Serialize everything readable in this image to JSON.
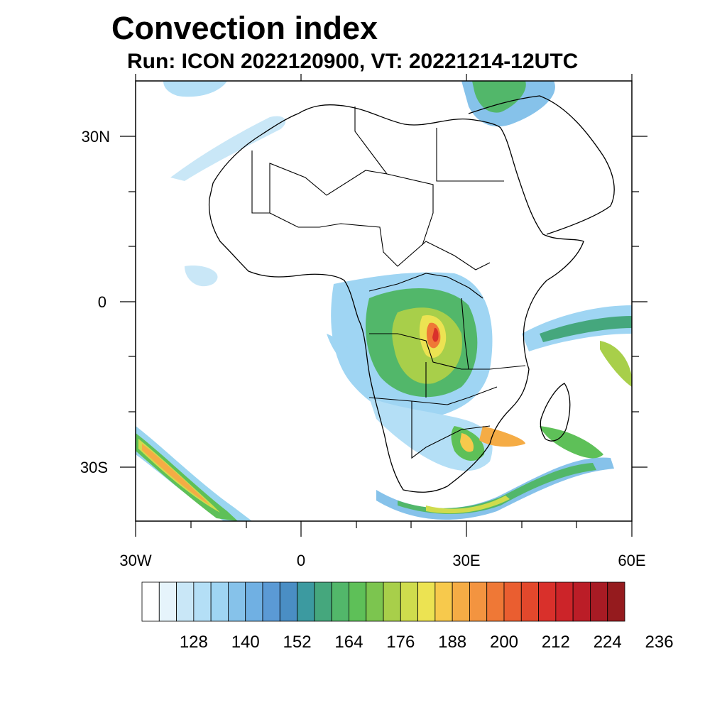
{
  "title": "Convection index",
  "subtitle": "Run: ICON 2022120900,  VT: 20221214-12UTC",
  "map": {
    "region": "Africa",
    "lon_range": [
      -30,
      60
    ],
    "lat_range": [
      -40,
      40
    ],
    "x_ticks": [
      {
        "value": -30,
        "label": "30W"
      },
      {
        "value": 0,
        "label": "0"
      },
      {
        "value": 30,
        "label": "30E"
      },
      {
        "value": 60,
        "label": "60E"
      }
    ],
    "y_ticks": [
      {
        "value": 30,
        "label": "30N"
      },
      {
        "value": 0,
        "label": "0"
      },
      {
        "value": -30,
        "label": "30S"
      }
    ]
  },
  "colorbar": {
    "labels": [
      "128",
      "140",
      "152",
      "164",
      "176",
      "188",
      "200",
      "212",
      "224",
      "236"
    ],
    "colors": [
      "#ffffff",
      "#e6f4fb",
      "#c9e7f7",
      "#b4dff6",
      "#9fd5f3",
      "#86c2ea",
      "#70b0e3",
      "#5b9ad5",
      "#4a8ec4",
      "#3c9aa0",
      "#45a77d",
      "#52b76a",
      "#5ec058",
      "#7cc54f",
      "#a8cf4a",
      "#cfdc4d",
      "#ece352",
      "#f7c94c",
      "#f5ac45",
      "#f39440",
      "#ef7836",
      "#ea5e30",
      "#e3482c",
      "#d9302b",
      "#cc2429",
      "#bb1d27",
      "#a81b24",
      "#951b1e"
    ]
  }
}
